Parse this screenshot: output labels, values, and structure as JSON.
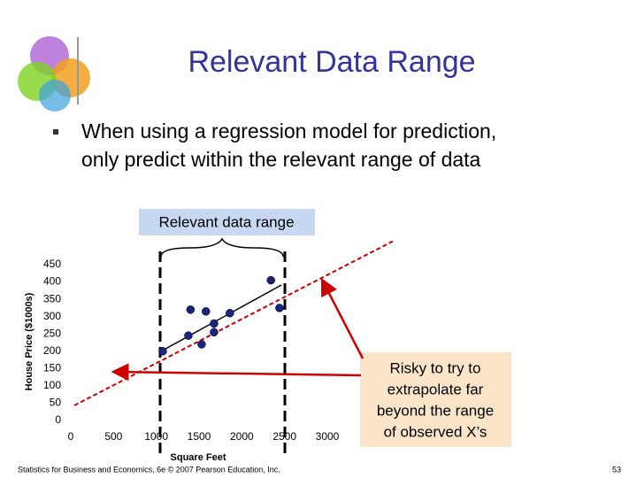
{
  "title": "Relevant Data Range",
  "bullet_lines": [
    "When using a regression model for prediction,",
    "only predict within the relevant range of data"
  ],
  "range_label": "Relevant data range",
  "callout_lines": [
    "Risky to try to",
    "extrapolate far",
    "beyond the range",
    "of observed X’s"
  ],
  "footer": "Statistics for Business and Economics, 6e © 2007 Pearson Education, Inc.",
  "page_number": 53,
  "chart_data": {
    "type": "scatter",
    "x": [
      1075,
      1375,
      1400,
      1530,
      1580,
      1675,
      1675,
      1860,
      2340,
      2440
    ],
    "values": [
      200,
      245,
      320,
      220,
      315,
      280,
      255,
      310,
      405,
      325
    ],
    "color": "#1a237e",
    "xlabel": "Square Feet",
    "ylabel": "House Price ($1000s)",
    "xlim": [
      0,
      3000
    ],
    "ylim": [
      0,
      450
    ],
    "xticks": [
      0,
      500,
      1000,
      1500,
      2000,
      2500,
      3000
    ],
    "yticks": [
      0,
      50,
      100,
      150,
      200,
      250,
      300,
      350,
      400,
      450
    ]
  }
}
